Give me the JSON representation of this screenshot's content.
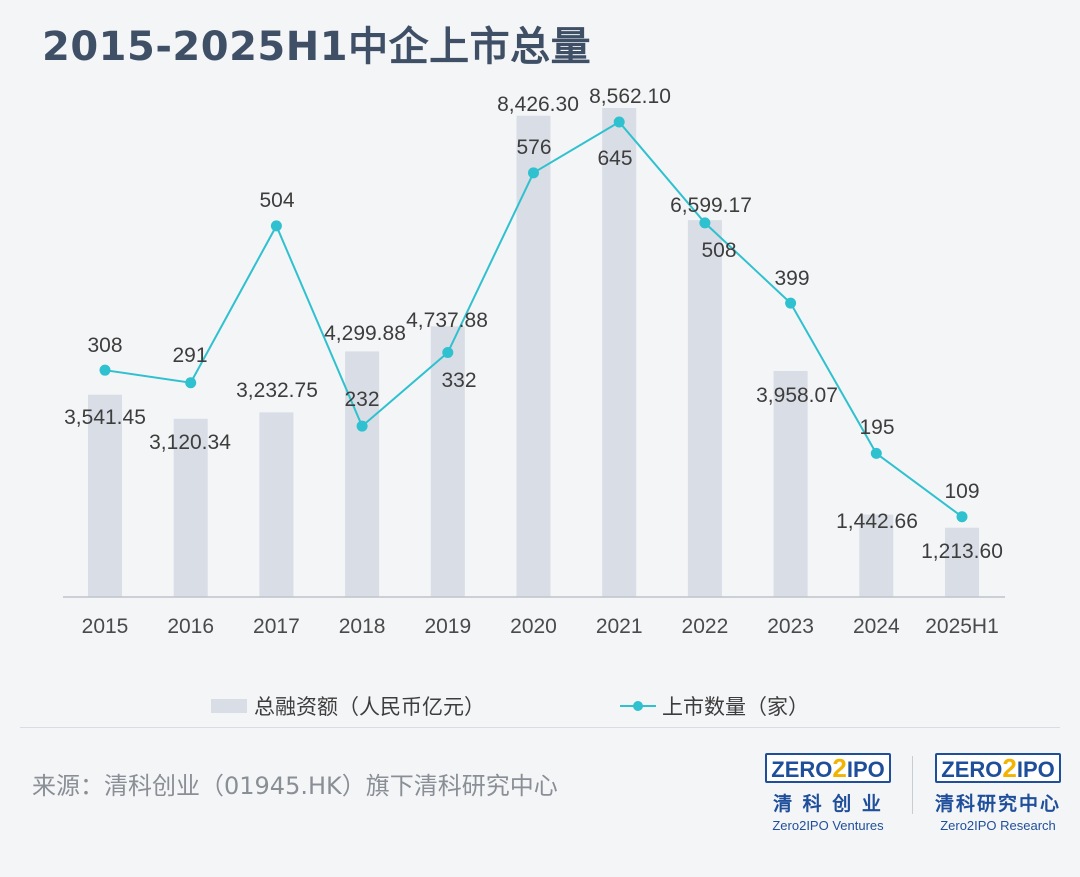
{
  "title": "2015-2025H1中企上市总量",
  "chart_data": {
    "type": "bar+line",
    "categories": [
      "2015",
      "2016",
      "2017",
      "2018",
      "2019",
      "2020",
      "2021",
      "2022",
      "2023",
      "2024",
      "2025H1"
    ],
    "series": [
      {
        "name": "总融资额（人民币亿元）",
        "type": "bar",
        "color": "#d9dde5",
        "values": [
          3541.45,
          3120.34,
          3232.75,
          4299.88,
          4737.88,
          8426.3,
          8562.1,
          6599.17,
          3958.07,
          1442.66,
          1213.6
        ],
        "labels": [
          "3,541.45",
          "3,120.34",
          "3,232.75",
          "4,299.88",
          "4,737.88",
          "8,426.30",
          "8,562.10",
          "6,599.17",
          "3,958.07",
          "1,442.66",
          "1,213.60"
        ]
      },
      {
        "name": "上市数量（家）",
        "type": "line",
        "color": "#2fc1cf",
        "values": [
          308,
          291,
          504,
          232,
          332,
          576,
          645,
          508,
          399,
          195,
          109
        ],
        "labels": [
          "308",
          "291",
          "504",
          "232",
          "332",
          "576",
          "645",
          "508",
          "399",
          "195",
          "109"
        ]
      }
    ],
    "legend_position": "bottom",
    "grid": false
  },
  "footer": {
    "source": "来源：清科创业（01945.HK）旗下清科研究中心"
  },
  "logos": [
    {
      "prefix": "ZERO",
      "two": "2",
      "suffix": "IPO",
      "cn": "清 科 创 业",
      "en": "Zero2IPO Ventures"
    },
    {
      "prefix": "ZERO",
      "two": "2",
      "suffix": "IPO",
      "cn": "清科研究中心",
      "en": "Zero2IPO Research"
    }
  ]
}
